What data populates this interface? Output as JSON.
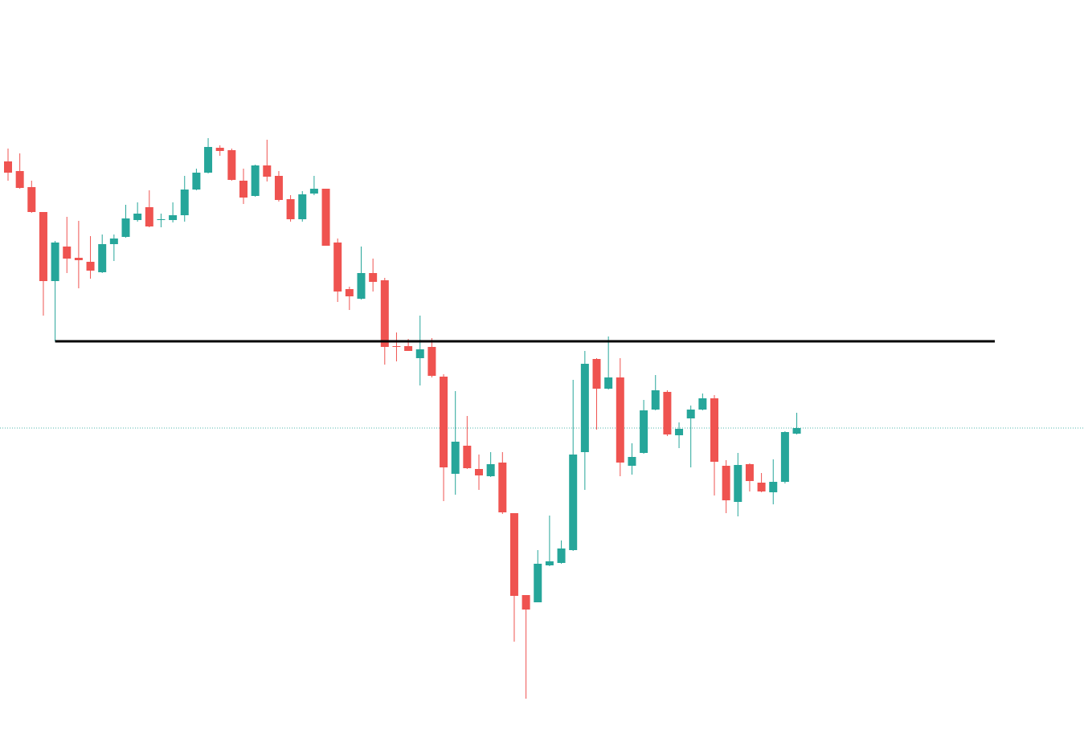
{
  "chart_data": {
    "type": "candlestick",
    "ylim": [
      0,
      914
    ],
    "up_color": "#26a69a",
    "down_color": "#ef5350",
    "series": [
      {
        "open": [
          713,
          701,
          681,
          650,
          564,
          607,
          593,
          588,
          575,
          610,
          619,
          640,
          656,
          640,
          640,
          646,
          678,
          699,
          730,
          727,
          689,
          670,
          708,
          695,
          666,
          641,
          673,
          679,
          612,
          554,
          542,
          574,
          565,
          483,
          483,
          468,
          482,
          445,
          324,
          359,
          330,
          321,
          338,
          275,
          173,
          164,
          210,
          213,
          229,
          351,
          467,
          430,
          444,
          334,
          350,
          404,
          426,
          372,
          393,
          404,
          418,
          334,
          289,
          336,
          313,
          301,
          314,
          374
        ],
        "high": [
          729,
          723,
          689,
          650,
          614,
          644,
          639,
          620,
          622,
          622,
          659,
          662,
          677,
          648,
          662,
          695,
          704,
          742,
          733,
          729,
          704,
          709,
          740,
          701,
          671,
          676,
          695,
          679,
          617,
          557,
          607,
          592,
          568,
          500,
          492,
          521,
          493,
          448,
          427,
          396,
          348,
          351,
          351,
          275,
          173,
          229,
          272,
          241,
          441,
          477,
          468,
          495,
          468,
          362,
          416,
          447,
          428,
          388,
          409,
          424,
          422,
          341,
          350,
          337,
          325,
          342,
          377,
          400
        ],
        "low": [
          689,
          679,
          649,
          521,
          489,
          574,
          555,
          567,
          574,
          589,
          618,
          638,
          631,
          631,
          637,
          638,
          677,
          698,
          720,
          689,
          660,
          669,
          688,
          663,
          638,
          638,
          671,
          608,
          538,
          528,
          541,
          551,
          460,
          464,
          477,
          434,
          444,
          290,
          298,
          330,
          304,
          320,
          274,
          115,
          44,
          164,
          209,
          212,
          228,
          304,
          379,
          429,
          321,
          323,
          349,
          403,
          371,
          356,
          332,
          403,
          297,
          275,
          271,
          302,
          301,
          286,
          312,
          373
        ],
        "close": [
          699,
          680,
          650,
          564,
          612,
          592,
          590,
          577,
          610,
          617,
          642,
          648,
          632,
          641,
          646,
          678,
          699,
          731,
          726,
          690,
          668,
          708,
          694,
          665,
          641,
          672,
          679,
          608,
          551,
          545,
          574,
          563,
          482,
          482,
          477,
          479,
          446,
          332,
          364,
          331,
          322,
          336,
          276,
          172,
          155,
          212,
          215,
          231,
          348,
          461,
          430,
          444,
          338,
          345,
          403,
          428,
          373,
          380,
          404,
          418,
          339,
          291,
          335,
          315,
          302,
          314,
          376,
          381
        ]
      }
    ],
    "level_line": {
      "value": 489,
      "color": "#000000"
    },
    "price_line": {
      "value": 381,
      "color": "#26a69a"
    }
  }
}
